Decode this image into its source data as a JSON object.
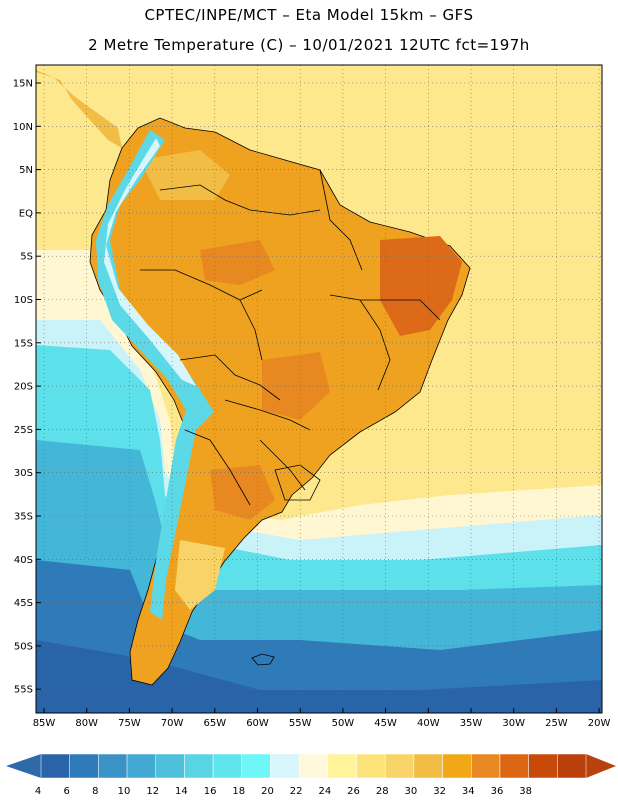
{
  "title": {
    "line1": "CPTEC/INPE/MCT –  Eta Model 15km – GFS",
    "line2": "2 Metre Temperature (C) – 10/01/2021 12UTC fct=197h"
  },
  "axes": {
    "lat_labels": [
      "15N",
      "10N",
      "5N",
      "EQ",
      "5S",
      "10S",
      "15S",
      "20S",
      "25S",
      "30S",
      "35S",
      "40S",
      "45S",
      "50S",
      "55S"
    ],
    "lon_labels": [
      "85W",
      "80W",
      "75W",
      "70W",
      "65W",
      "60W",
      "55W",
      "50W",
      "45W",
      "40W",
      "35W",
      "30W",
      "25W",
      "20W"
    ]
  },
  "colorbar": {
    "labels": [
      "4",
      "6",
      "8",
      "10",
      "12",
      "14",
      "16",
      "18",
      "20",
      "22",
      "24",
      "26",
      "28",
      "30",
      "32",
      "34",
      "36",
      "38"
    ],
    "colors": [
      "#2a64a8",
      "#2f7ab8",
      "#3b92c6",
      "#44a9d2",
      "#4ec0dc",
      "#59d4e4",
      "#5fe6ec",
      "#6ff6f6",
      "#d6f6fb",
      "#fff8dc",
      "#fff49a",
      "#fde47a",
      "#f8d468",
      "#f2bd45",
      "#f2a716",
      "#e88821",
      "#dc6613",
      "#c84a0b",
      "#ba3f0a"
    ],
    "low_color": "#2f6aa8",
    "high_color": "#b8420e"
  },
  "map_colors": {
    "ocean_deep": "#2c6aaa",
    "ocean_mid": "#3f9bd0",
    "ocean_cyan": "#5ee0ea",
    "ocean_light": "#d9f6fb",
    "ocean_warm": "#fde88e",
    "land_hot": "#efa220",
    "land_veryhot": "#dd6a18",
    "andes": "#5dd8e6",
    "border": "#000000",
    "grid": "#6a6a6a"
  }
}
